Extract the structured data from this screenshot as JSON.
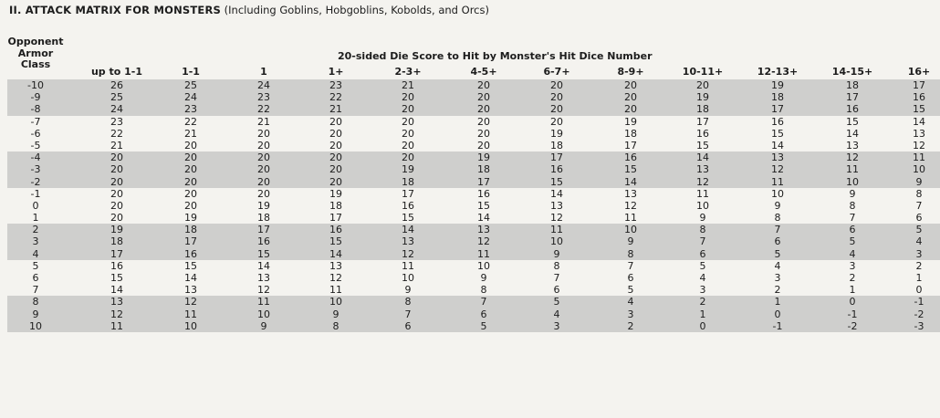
{
  "heading": {
    "bold": "II. ATTACK MATRIX FOR MONSTERS",
    "normal": " (Including Goblins, Hobgoblins, Kobolds, and Orcs)"
  },
  "table": {
    "opponent_header": [
      "Opponent",
      "Armor",
      "Class"
    ],
    "die_header": "20-sided Die Score to Hit by Monster's Hit Dice Number",
    "columns": [
      "up to 1-1",
      "1-1",
      "1",
      "1+",
      "2-3+",
      "4-5+",
      "6-7+",
      "8-9+",
      "10-11+",
      "12-13+",
      "14-15+",
      "16+"
    ],
    "rows": [
      {
        "ac": "-10",
        "v": [
          "26",
          "25",
          "24",
          "23",
          "21",
          "20",
          "20",
          "20",
          "20",
          "19",
          "18",
          "17"
        ]
      },
      {
        "ac": "-9",
        "v": [
          "25",
          "24",
          "23",
          "22",
          "20",
          "20",
          "20",
          "20",
          "19",
          "18",
          "17",
          "16"
        ]
      },
      {
        "ac": "-8",
        "v": [
          "24",
          "23",
          "22",
          "21",
          "20",
          "20",
          "20",
          "20",
          "18",
          "17",
          "16",
          "15"
        ]
      },
      {
        "ac": "-7",
        "v": [
          "23",
          "22",
          "21",
          "20",
          "20",
          "20",
          "20",
          "19",
          "17",
          "16",
          "15",
          "14"
        ]
      },
      {
        "ac": "-6",
        "v": [
          "22",
          "21",
          "20",
          "20",
          "20",
          "20",
          "19",
          "18",
          "16",
          "15",
          "14",
          "13"
        ]
      },
      {
        "ac": "-5",
        "v": [
          "21",
          "20",
          "20",
          "20",
          "20",
          "20",
          "18",
          "17",
          "15",
          "14",
          "13",
          "12"
        ]
      },
      {
        "ac": "-4",
        "v": [
          "20",
          "20",
          "20",
          "20",
          "20",
          "19",
          "17",
          "16",
          "14",
          "13",
          "12",
          "11"
        ]
      },
      {
        "ac": "-3",
        "v": [
          "20",
          "20",
          "20",
          "20",
          "19",
          "18",
          "16",
          "15",
          "13",
          "12",
          "11",
          "10"
        ]
      },
      {
        "ac": "-2",
        "v": [
          "20",
          "20",
          "20",
          "20",
          "18",
          "17",
          "15",
          "14",
          "12",
          "11",
          "10",
          "9"
        ]
      },
      {
        "ac": "-1",
        "v": [
          "20",
          "20",
          "20",
          "19",
          "17",
          "16",
          "14",
          "13",
          "11",
          "10",
          "9",
          "8"
        ]
      },
      {
        "ac": "0",
        "v": [
          "20",
          "20",
          "19",
          "18",
          "16",
          "15",
          "13",
          "12",
          "10",
          "9",
          "8",
          "7"
        ]
      },
      {
        "ac": "1",
        "v": [
          "20",
          "19",
          "18",
          "17",
          "15",
          "14",
          "12",
          "11",
          "9",
          "8",
          "7",
          "6"
        ]
      },
      {
        "ac": "2",
        "v": [
          "19",
          "18",
          "17",
          "16",
          "14",
          "13",
          "11",
          "10",
          "8",
          "7",
          "6",
          "5"
        ]
      },
      {
        "ac": "3",
        "v": [
          "18",
          "17",
          "16",
          "15",
          "13",
          "12",
          "10",
          "9",
          "7",
          "6",
          "5",
          "4"
        ]
      },
      {
        "ac": "4",
        "v": [
          "17",
          "16",
          "15",
          "14",
          "12",
          "11",
          "9",
          "8",
          "6",
          "5",
          "4",
          "3"
        ]
      },
      {
        "ac": "5",
        "v": [
          "16",
          "15",
          "14",
          "13",
          "11",
          "10",
          "8",
          "7",
          "5",
          "4",
          "3",
          "2"
        ]
      },
      {
        "ac": "6",
        "v": [
          "15",
          "14",
          "13",
          "12",
          "10",
          "9",
          "7",
          "6",
          "4",
          "3",
          "2",
          "1"
        ]
      },
      {
        "ac": "7",
        "v": [
          "14",
          "13",
          "12",
          "11",
          "9",
          "8",
          "6",
          "5",
          "3",
          "2",
          "1",
          "0"
        ]
      },
      {
        "ac": "8",
        "v": [
          "13",
          "12",
          "11",
          "10",
          "8",
          "7",
          "5",
          "4",
          "2",
          "1",
          "0",
          "-1"
        ]
      },
      {
        "ac": "9",
        "v": [
          "12",
          "11",
          "10",
          "9",
          "7",
          "6",
          "4",
          "3",
          "1",
          "0",
          "-1",
          "-2"
        ]
      },
      {
        "ac": "10",
        "v": [
          "11",
          "10",
          "9",
          "8",
          "6",
          "5",
          "3",
          "2",
          "0",
          "-1",
          "-2",
          "-3"
        ]
      }
    ],
    "shaded_row_groups": [
      [
        0,
        2
      ],
      [
        6,
        8
      ],
      [
        12,
        14
      ],
      [
        18,
        20
      ]
    ],
    "shade_color": "#cfcfcd"
  }
}
